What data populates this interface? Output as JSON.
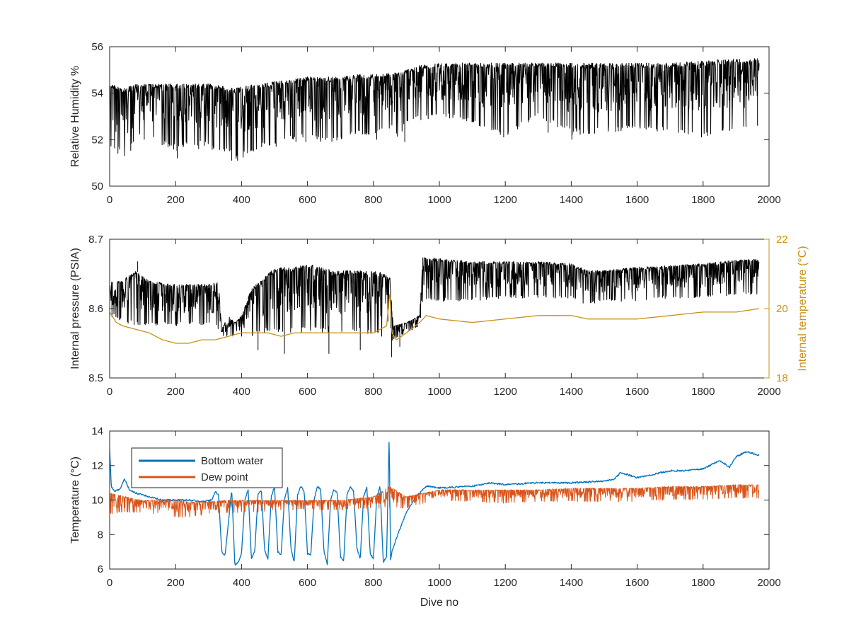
{
  "colors": {
    "black": "#000000",
    "pressure": "#000000",
    "internal_temp": "#C8911A",
    "bottom_water": "#0072BD",
    "dew_point": "#D95319",
    "axis": "#262626"
  },
  "chart_data": [
    {
      "type": "line",
      "title": "",
      "xlabel": "",
      "ylabel": "Relative Humidity %",
      "xlim": [
        0,
        2000
      ],
      "ylim": [
        50,
        56
      ],
      "x_ticks": [
        0,
        200,
        400,
        600,
        800,
        1000,
        1200,
        1400,
        1600,
        1800,
        2000
      ],
      "y_ticks": [
        50,
        52,
        54,
        56
      ],
      "x_tick_labels": [
        "0",
        "200",
        "400",
        "600",
        "800",
        "1000",
        "1200",
        "1400",
        "1600",
        "1800",
        "2000"
      ],
      "y_tick_labels": [
        "50",
        "52",
        "54",
        "56"
      ],
      "grid": false,
      "series": [
        {
          "color": "#000000",
          "x": [
            0,
            20,
            40,
            60,
            80,
            100,
            150,
            200,
            250,
            300,
            350,
            380,
            400,
            450,
            500,
            550,
            600,
            650,
            700,
            750,
            800,
            850,
            880,
            900,
            940,
            1000,
            1100,
            1200,
            1300,
            1400,
            1500,
            1600,
            1700,
            1800,
            1900,
            1970
          ],
          "upper": [
            54.5,
            54.3,
            54.2,
            54.3,
            54.4,
            54.4,
            54.4,
            54.4,
            54.4,
            54.4,
            54.3,
            54.2,
            54.3,
            54.4,
            54.5,
            54.6,
            54.7,
            54.7,
            54.7,
            54.8,
            54.8,
            54.9,
            54.9,
            55.0,
            55.2,
            55.3,
            55.3,
            55.3,
            55.3,
            55.3,
            55.3,
            55.3,
            55.3,
            55.4,
            55.5,
            55.5
          ],
          "lower": [
            51.5,
            51.5,
            51.4,
            51.4,
            52.0,
            52.2,
            51.8,
            51.5,
            51.8,
            51.6,
            51.5,
            51.1,
            51.2,
            51.6,
            51.8,
            52.0,
            52.0,
            51.8,
            52.0,
            52.2,
            52.2,
            52.5,
            51.9,
            52.8,
            52.8,
            53.0,
            52.7,
            52.1,
            53.0,
            52.2,
            52.3,
            52.4,
            52.3,
            52.1,
            52.4,
            52.6
          ],
          "spikes": [
            [
              25,
              51.4
            ],
            [
              45,
              51.3
            ],
            [
              105,
              52.0
            ],
            [
              180,
              51.8
            ],
            [
              205,
              51.2
            ],
            [
              270,
              51.6
            ],
            [
              370,
              51.1
            ],
            [
              388,
              51.1
            ],
            [
              430,
              51.6
            ],
            [
              505,
              51.7
            ],
            [
              565,
              51.9
            ],
            [
              595,
              51.9
            ],
            [
              810,
              52.0
            ],
            [
              895,
              51.9
            ],
            [
              1195,
              52.1
            ],
            [
              1330,
              52.3
            ],
            [
              1402,
              52.0
            ],
            [
              1795,
              52.1
            ],
            [
              1965,
              52.6
            ]
          ]
        }
      ]
    },
    {
      "type": "line",
      "title": "",
      "xlabel": "",
      "ylabel": "Internal pressure (PSIA)",
      "y2label": "Internal temperature (°C)",
      "xlim": [
        0,
        2000
      ],
      "ylim": [
        8.5,
        8.7
      ],
      "y2lim": [
        18,
        22
      ],
      "x_ticks": [
        0,
        200,
        400,
        600,
        800,
        1000,
        1200,
        1400,
        1600,
        1800,
        2000
      ],
      "y_ticks": [
        8.5,
        8.6,
        8.7
      ],
      "y2_ticks": [
        18,
        20,
        22
      ],
      "x_tick_labels": [
        "0",
        "200",
        "400",
        "600",
        "800",
        "1000",
        "1200",
        "1400",
        "1600",
        "1800",
        "2000"
      ],
      "y_tick_labels": [
        "8.5",
        "8.6",
        "8.7"
      ],
      "y2_tick_labels": [
        "18",
        "20",
        "22"
      ],
      "grid": false,
      "series": [
        {
          "axis": "left",
          "color": "#000000",
          "x": [
            0,
            40,
            80,
            120,
            200,
            300,
            330,
            340,
            360,
            380,
            400,
            430,
            460,
            490,
            520,
            560,
            600,
            640,
            680,
            720,
            760,
            800,
            840,
            850,
            860,
            900,
            940,
            950,
            1000,
            1100,
            1200,
            1300,
            1400,
            1450,
            1500,
            1600,
            1700,
            1800,
            1900,
            1970
          ],
          "upper": [
            8.64,
            8.642,
            8.655,
            8.64,
            8.635,
            8.635,
            8.64,
            8.57,
            8.59,
            8.58,
            8.59,
            8.63,
            8.64,
            8.655,
            8.66,
            8.66,
            8.665,
            8.66,
            8.655,
            8.655,
            8.655,
            8.655,
            8.65,
            8.645,
            8.575,
            8.58,
            8.59,
            8.675,
            8.672,
            8.668,
            8.668,
            8.668,
            8.665,
            8.655,
            8.655,
            8.66,
            8.662,
            8.665,
            8.67,
            8.672
          ],
          "lower": [
            8.59,
            8.58,
            8.575,
            8.575,
            8.575,
            8.575,
            8.57,
            8.56,
            8.56,
            8.56,
            8.56,
            8.56,
            8.565,
            8.565,
            8.565,
            8.565,
            8.565,
            8.565,
            8.565,
            8.565,
            8.565,
            8.56,
            8.56,
            8.54,
            8.555,
            8.565,
            8.575,
            8.61,
            8.61,
            8.61,
            8.615,
            8.615,
            8.615,
            8.605,
            8.61,
            8.61,
            8.615,
            8.615,
            8.62,
            8.62
          ],
          "spikes": [
            [
              85,
              8.668
            ],
            [
              450,
              8.54
            ],
            [
              530,
              8.535
            ],
            [
              665,
              8.535
            ],
            [
              760,
              8.54
            ],
            [
              855,
              8.53
            ],
            [
              880,
              8.545
            ]
          ]
        },
        {
          "axis": "right",
          "color": "#C8911A",
          "x": [
            0,
            20,
            40,
            80,
            120,
            160,
            200,
            240,
            280,
            320,
            360,
            400,
            440,
            480,
            520,
            560,
            600,
            640,
            680,
            720,
            760,
            800,
            840,
            850,
            856,
            870,
            900,
            940,
            960,
            1000,
            1100,
            1200,
            1300,
            1400,
            1450,
            1500,
            1600,
            1700,
            1800,
            1900,
            1970
          ],
          "y": [
            19.9,
            19.6,
            19.5,
            19.4,
            19.3,
            19.1,
            19.0,
            19.0,
            19.1,
            19.1,
            19.2,
            19.3,
            19.3,
            19.3,
            19.2,
            19.3,
            19.3,
            19.3,
            19.3,
            19.3,
            19.3,
            19.3,
            19.5,
            20.5,
            19.3,
            19.1,
            19.3,
            19.6,
            19.8,
            19.7,
            19.6,
            19.7,
            19.8,
            19.8,
            19.7,
            19.7,
            19.7,
            19.8,
            19.9,
            19.9,
            20.0
          ]
        }
      ]
    },
    {
      "type": "line",
      "title": "",
      "xlabel": "Dive no",
      "ylabel": "Temperature (°C)",
      "xlim": [
        0,
        2000
      ],
      "ylim": [
        6,
        14
      ],
      "x_ticks": [
        0,
        200,
        400,
        600,
        800,
        1000,
        1200,
        1400,
        1600,
        1800,
        2000
      ],
      "y_ticks": [
        6,
        8,
        10,
        12,
        14
      ],
      "x_tick_labels": [
        "0",
        "200",
        "400",
        "600",
        "800",
        "1000",
        "1200",
        "1400",
        "1600",
        "1800",
        "2000"
      ],
      "y_tick_labels": [
        "6",
        "8",
        "10",
        "12",
        "14"
      ],
      "grid": false,
      "legend": "top-left",
      "series": [
        {
          "name": "Bottom water",
          "color": "#0072BD",
          "x": [
            0,
            5,
            15,
            30,
            45,
            60,
            80,
            120,
            160,
            200,
            240,
            280,
            310,
            320,
            330,
            340,
            350,
            370,
            380,
            390,
            400,
            410,
            420,
            430,
            440,
            450,
            460,
            470,
            480,
            490,
            500,
            510,
            520,
            530,
            540,
            550,
            560,
            570,
            580,
            590,
            600,
            610,
            620,
            630,
            640,
            650,
            660,
            670,
            680,
            690,
            700,
            710,
            720,
            730,
            740,
            750,
            760,
            770,
            780,
            790,
            800,
            810,
            820,
            830,
            840,
            848,
            852,
            856,
            870,
            900,
            930,
            960,
            1000,
            1100,
            1150,
            1200,
            1300,
            1400,
            1500,
            1530,
            1550,
            1600,
            1700,
            1750,
            1800,
            1850,
            1880,
            1900,
            1930,
            1950,
            1970
          ],
          "y": [
            13.0,
            10.8,
            10.5,
            10.6,
            11.2,
            10.6,
            10.4,
            10.2,
            10.0,
            10.0,
            10.0,
            9.9,
            10.0,
            10.5,
            10.3,
            7.0,
            6.8,
            10.6,
            6.2,
            6.4,
            6.9,
            10.0,
            10.6,
            6.6,
            7.0,
            10.3,
            10.6,
            7.1,
            6.6,
            10.2,
            10.8,
            7.0,
            6.8,
            10.0,
            10.7,
            7.2,
            6.4,
            10.3,
            10.8,
            10.5,
            6.9,
            6.8,
            10.0,
            10.8,
            10.6,
            7.0,
            6.3,
            10.0,
            10.6,
            10.4,
            6.7,
            6.5,
            10.3,
            10.8,
            10.5,
            7.2,
            6.6,
            10.2,
            10.7,
            6.9,
            6.6,
            10.2,
            10.8,
            6.4,
            6.7,
            13.8,
            6.5,
            7.0,
            7.8,
            9.3,
            10.2,
            10.8,
            10.7,
            10.8,
            11.0,
            10.9,
            11.0,
            11.0,
            11.1,
            11.2,
            11.6,
            11.3,
            11.7,
            11.7,
            11.8,
            12.3,
            11.9,
            12.5,
            12.8,
            12.7,
            12.6
          ]
        },
        {
          "name": "Dew point",
          "color": "#D95319",
          "x": [
            0,
            50,
            100,
            150,
            200,
            250,
            300,
            350,
            400,
            450,
            500,
            550,
            600,
            650,
            700,
            750,
            800,
            850,
            900,
            950,
            1000,
            1100,
            1200,
            1300,
            1400,
            1500,
            1600,
            1700,
            1800,
            1900,
            1970
          ],
          "upper": [
            10.4,
            10.2,
            10.0,
            10.0,
            10.0,
            9.9,
            9.9,
            10.0,
            10.0,
            10.0,
            10.0,
            10.0,
            10.0,
            10.0,
            10.0,
            10.1,
            10.2,
            10.8,
            10.2,
            10.4,
            10.6,
            10.6,
            10.6,
            10.6,
            10.7,
            10.7,
            10.7,
            10.8,
            10.8,
            10.9,
            10.9
          ],
          "lower": [
            9.2,
            9.3,
            9.2,
            9.2,
            9.0,
            9.0,
            9.2,
            9.2,
            9.3,
            9.3,
            9.4,
            9.4,
            9.5,
            9.4,
            9.4,
            9.5,
            9.5,
            9.5,
            9.5,
            9.8,
            10.0,
            9.9,
            9.8,
            9.9,
            9.9,
            9.9,
            9.9,
            10.0,
            10.0,
            10.1,
            10.1
          ]
        }
      ]
    }
  ]
}
